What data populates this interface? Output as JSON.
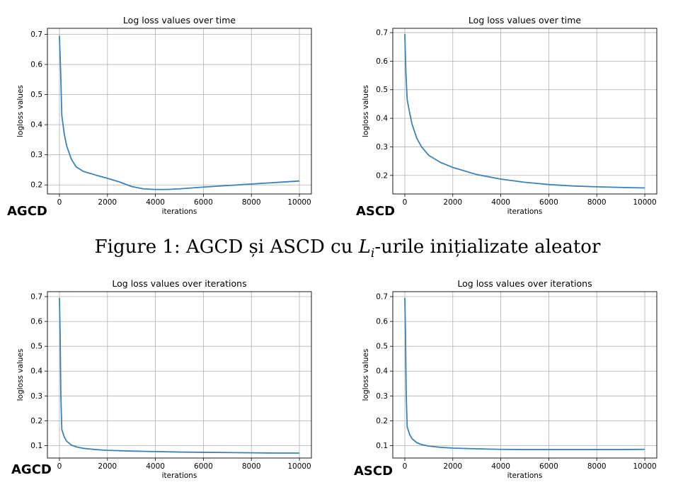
{
  "caption": {
    "prefix": "Figure 1: AGCD și ASCD cu ",
    "math": "L",
    "sub": "i",
    "suffix": "-urile inițializate aleator"
  },
  "colors": {
    "line": "#3c82b8",
    "grid": "#b0b0b0",
    "axis": "#000000"
  },
  "chart_data": [
    {
      "type": "line",
      "label": "AGCD",
      "title": "Log loss values over time",
      "xlabel": "iterations",
      "ylabel": "logloss values",
      "grid": true,
      "xlim": [
        -500,
        10500
      ],
      "ylim": [
        0.17,
        0.72
      ],
      "xticks": [
        0,
        2000,
        4000,
        6000,
        8000,
        10000
      ],
      "yticks": [
        0.2,
        0.3,
        0.4,
        0.5,
        0.6,
        0.7
      ],
      "ytick_labels": [
        "0.2",
        "0.3",
        "0.4",
        "0.5",
        "0.6",
        "0.7"
      ],
      "x": [
        0,
        50,
        100,
        200,
        300,
        500,
        700,
        1000,
        1500,
        2000,
        2500,
        3000,
        3500,
        4000,
        4500,
        5000,
        6000,
        7000,
        8000,
        9000,
        10000
      ],
      "y": [
        0.695,
        0.58,
        0.43,
        0.37,
        0.33,
        0.285,
        0.26,
        0.245,
        0.233,
        0.222,
        0.21,
        0.195,
        0.187,
        0.185,
        0.185,
        0.187,
        0.193,
        0.198,
        0.203,
        0.208,
        0.213
      ]
    },
    {
      "type": "line",
      "label": "ASCD",
      "title": "Log loss values over time",
      "xlabel": "iterations",
      "ylabel": "logloss values",
      "grid": true,
      "xlim": [
        -500,
        10500
      ],
      "ylim": [
        0.135,
        0.715
      ],
      "xticks": [
        0,
        2000,
        4000,
        6000,
        8000,
        10000
      ],
      "yticks": [
        0.2,
        0.3,
        0.4,
        0.5,
        0.6,
        0.7
      ],
      "ytick_labels": [
        "0.2",
        "0.3",
        "0.4",
        "0.5",
        "0.6",
        "0.7"
      ],
      "x": [
        0,
        50,
        100,
        200,
        300,
        500,
        700,
        1000,
        1500,
        2000,
        3000,
        4000,
        5000,
        6000,
        7000,
        8000,
        9000,
        10000
      ],
      "y": [
        0.695,
        0.55,
        0.465,
        0.42,
        0.38,
        0.33,
        0.3,
        0.27,
        0.245,
        0.228,
        0.203,
        0.187,
        0.176,
        0.168,
        0.163,
        0.16,
        0.158,
        0.156
      ]
    },
    {
      "type": "line",
      "label": "AGCD",
      "title": "Log loss values over iterations",
      "xlabel": "iterations",
      "ylabel": "logloss values",
      "grid": true,
      "xlim": [
        -500,
        10500
      ],
      "ylim": [
        0.05,
        0.72
      ],
      "xticks": [
        0,
        2000,
        4000,
        6000,
        8000,
        10000
      ],
      "yticks": [
        0.1,
        0.2,
        0.3,
        0.4,
        0.5,
        0.6,
        0.7
      ],
      "ytick_labels": [
        "0.1",
        "0.2",
        "0.3",
        "0.4",
        "0.5",
        "0.6",
        "0.7"
      ],
      "x": [
        0,
        30,
        60,
        100,
        200,
        300,
        500,
        700,
        1000,
        1500,
        2000,
        3000,
        4000,
        5000,
        6000,
        7000,
        8000,
        9000,
        10000
      ],
      "y": [
        0.695,
        0.55,
        0.3,
        0.165,
        0.135,
        0.118,
        0.102,
        0.095,
        0.089,
        0.084,
        0.081,
        0.078,
        0.076,
        0.074,
        0.073,
        0.072,
        0.071,
        0.07,
        0.07
      ]
    },
    {
      "type": "line",
      "label": "ASCD",
      "title": "Log loss values over iterations",
      "xlabel": "iterations",
      "ylabel": "logloss values",
      "grid": true,
      "xlim": [
        -500,
        10500
      ],
      "ylim": [
        0.05,
        0.72
      ],
      "xticks": [
        0,
        2000,
        4000,
        6000,
        8000,
        10000
      ],
      "yticks": [
        0.1,
        0.2,
        0.3,
        0.4,
        0.5,
        0.6,
        0.7
      ],
      "ytick_labels": [
        "0.1",
        "0.2",
        "0.3",
        "0.4",
        "0.5",
        "0.6",
        "0.7"
      ],
      "x": [
        0,
        30,
        60,
        100,
        200,
        300,
        500,
        700,
        1000,
        1500,
        2000,
        3000,
        4000,
        5000,
        6000,
        7000,
        8000,
        9000,
        10000
      ],
      "y": [
        0.695,
        0.55,
        0.3,
        0.175,
        0.145,
        0.128,
        0.112,
        0.104,
        0.098,
        0.093,
        0.09,
        0.087,
        0.085,
        0.084,
        0.084,
        0.084,
        0.084,
        0.084,
        0.085
      ]
    }
  ]
}
